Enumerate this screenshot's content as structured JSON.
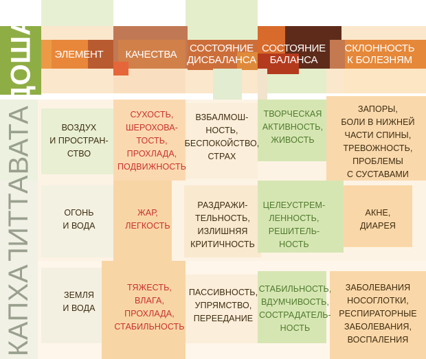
{
  "table": {
    "corner_label": "ДОША",
    "columns": [
      {
        "label": "ЭЛЕМЕНТ"
      },
      {
        "label": "КАЧЕСТВА"
      },
      {
        "label": "СОСТОЯНИЕ\nДИСБАЛАНСА"
      },
      {
        "label": "СОСТОЯНИЕ\nБАЛАНСА"
      },
      {
        "label": "СКЛОННОСТЬ\nК БОЛЕЗНЯМ"
      }
    ],
    "rows": [
      {
        "dosha": "ВАТА",
        "cells": [
          "ВОЗДУХ\nИ ПРОСТРАН-\nСТВО",
          "СУХОСТЬ,\nШЕРОХОВА-\nТОСТЬ,\nПРОХЛАДА,\nПОДВИЖНОСТЬ",
          "ВЗБАЛМОШ-\nНОСТЬ,\nБЕСПОКОЙСТВО,\nСТРАХ",
          "ТВОРЧЕСКАЯ\nАКТИВНОСТЬ,\nЖИВОСТЬ",
          "ЗАПОРЫ,\nБОЛИ В НИЖНЕЙ\nЧАСТИ СПИНЫ,\nТРЕВОЖНОСТЬ,\nПРОБЛЕМЫ\nС СУСТАВАМИ"
        ]
      },
      {
        "dosha": "ПИТТА",
        "cells": [
          "ОГОНЬ\nИ ВОДА",
          "ЖАР,\nЛЕГКОСТЬ",
          "РАЗДРАЖИ-\nТЕЛЬНОСТЬ,\nИЗЛИШНЯЯ\nКРИТИЧНОСТЬ",
          "ЦЕЛЕУСТРЕМ-\nЛЕННОСТЬ,\nРЕШИТЕЛЬ-\nНОСТЬ",
          "АКНЕ,\nДИАРЕЯ"
        ]
      },
      {
        "dosha": "КАПХА",
        "cells": [
          "ЗЕМЛЯ\nИ ВОДА",
          "ТЯЖЕСТЬ,\nВЛАГА,\nПРОХЛАДА,\nСТАБИЛЬНОСТЬ",
          "ПАССИВНОСТЬ,\nУПРЯМСТВО,\nПЕРЕЕДАНИЕ",
          "СТАБИЛЬНОСТЬ,\nВДУМЧИВОСТЬ,\nСОСТРАДАТЕЛЬ-\nНОСТЬ",
          "ЗАБОЛЕВАНИЯ\nНОСОГЛОТКИ,\nРЕСПИРАТОРНЫЕ\nЗАБОЛЕВАНИЯ,\nВОСПАЛЕНИЯ"
        ]
      }
    ]
  },
  "colors": {
    "dosha_green": "#8fad45",
    "header_orange": "#e5883a",
    "header_brown": "#8a4228",
    "header_tan": "#c07a50",
    "quality_text_red": "#c8322e",
    "balance_text_green": "#4f7a2c",
    "body_text_dark": "#3d2c10",
    "peach": "#f8d5a5",
    "pale_green": "#d6e6b3"
  }
}
